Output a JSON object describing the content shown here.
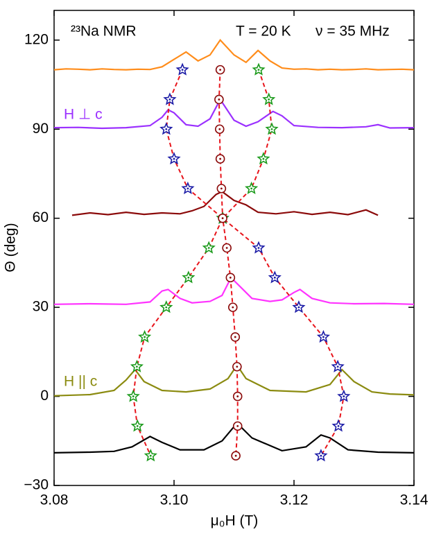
{
  "chart_data": {
    "type": "line",
    "xlabel": "μ₀H (T)",
    "ylabel": "Θ (deg)",
    "annotations": [
      "²³Na NMR",
      "T = 20 K",
      "ν = 35 MHz",
      "H ⊥ c",
      "H || c"
    ],
    "xlim": [
      3.08,
      3.14
    ],
    "ylim": [
      -30,
      130
    ],
    "xticks": [
      3.08,
      {
        "value": 3.1,
        "label": "3.10"
      },
      3.12,
      3.14
    ],
    "yticks": [
      {
        "value": -30,
        "label": "−30"
      },
      0,
      30,
      60,
      90,
      120
    ],
    "series": [
      {
        "color": "#ff8c1a",
        "line": "solid",
        "marker": "none",
        "x": [
          3.08,
          3.082,
          3.084,
          3.086,
          3.088,
          3.09,
          3.092,
          3.094,
          3.096,
          3.098,
          3.1,
          3.102,
          3.104,
          3.106,
          3.1077,
          3.11,
          3.112,
          3.114,
          3.116,
          3.118,
          3.12,
          3.122,
          3.124,
          3.126,
          3.128,
          3.13,
          3.132,
          3.134,
          3.136,
          3.138,
          3.14
        ],
        "values": [
          110,
          110.3,
          110.2,
          110,
          110.3,
          110.1,
          110,
          110.2,
          110.1,
          111,
          113.5,
          116,
          113,
          115,
          120,
          115,
          112.5,
          116.5,
          113,
          110.6,
          110.2,
          110.3,
          110,
          110.2,
          110,
          110.1,
          110.3,
          110,
          110.1,
          110.2,
          110
        ]
      },
      {
        "color": "#9b30ff",
        "line": "solid",
        "marker": "none",
        "x": [
          3.08,
          3.084,
          3.088,
          3.092,
          3.096,
          3.098,
          3.099,
          3.1,
          3.102,
          3.104,
          3.106,
          3.1077,
          3.11,
          3.112,
          3.114,
          3.1165,
          3.118,
          3.12,
          3.124,
          3.128,
          3.132,
          3.134,
          3.136,
          3.14
        ],
        "values": [
          90.5,
          90.6,
          90.3,
          90.5,
          91.2,
          94,
          96.5,
          95.5,
          91.5,
          91,
          93.5,
          100,
          93,
          91,
          92.5,
          96,
          94.5,
          91.2,
          90.6,
          90.5,
          90.8,
          91.5,
          90.4,
          90.5
        ]
      },
      {
        "color": "#8b0a0a",
        "line": "solid",
        "marker": "none",
        "x": [
          3.083,
          3.086,
          3.089,
          3.092,
          3.095,
          3.098,
          3.101,
          3.103,
          3.105,
          3.107,
          3.108,
          3.11,
          3.112,
          3.114,
          3.117,
          3.12,
          3.123,
          3.126,
          3.129,
          3.132,
          3.134
        ],
        "values": [
          61,
          61.8,
          61.2,
          62,
          61.3,
          61.8,
          61.5,
          62.5,
          64,
          68,
          69,
          66,
          64.5,
          62,
          61.5,
          62.2,
          61.3,
          62,
          61.2,
          62.8,
          61
        ]
      },
      {
        "color": "#ff33ff",
        "line": "solid",
        "marker": "none",
        "x": [
          3.08,
          3.086,
          3.092,
          3.096,
          3.098,
          3.099,
          3.101,
          3.103,
          3.106,
          3.108,
          3.1095,
          3.111,
          3.113,
          3.116,
          3.118,
          3.12,
          3.121,
          3.123,
          3.126,
          3.13,
          3.135,
          3.14
        ],
        "values": [
          31,
          31.2,
          31,
          31.8,
          35.5,
          36,
          33,
          31.5,
          32,
          34,
          40,
          37,
          33,
          32,
          32.5,
          35,
          36,
          33,
          31.5,
          31.2,
          31.3,
          31
        ]
      },
      {
        "color": "#8b8b10",
        "line": "solid",
        "marker": "none",
        "x": [
          3.08,
          3.086,
          3.09,
          3.092,
          3.0935,
          3.095,
          3.098,
          3.102,
          3.106,
          3.109,
          3.1105,
          3.112,
          3.116,
          3.122,
          3.126,
          3.128,
          3.13,
          3.133,
          3.136,
          3.14
        ],
        "values": [
          0.2,
          0.6,
          2,
          5.5,
          9,
          5,
          2,
          1.5,
          2.5,
          6,
          10.5,
          6,
          2,
          1.5,
          4,
          9,
          5,
          1.5,
          0.8,
          0.5
        ]
      },
      {
        "color": "#000000",
        "line": "solid",
        "marker": "none",
        "x": [
          3.08,
          3.086,
          3.09,
          3.093,
          3.096,
          3.098,
          3.101,
          3.105,
          3.108,
          3.1105,
          3.113,
          3.118,
          3.122,
          3.1245,
          3.126,
          3.129,
          3.134,
          3.14
        ],
        "values": [
          -19,
          -18.8,
          -18.5,
          -17,
          -13.5,
          -15.5,
          -18,
          -18,
          -15,
          -9,
          -14,
          -18.3,
          -17,
          -13,
          -14,
          -18,
          -18.8,
          -19
        ]
      },
      {
        "color": "#1a1aa6",
        "line": "dashed",
        "line_color": "#e8141b",
        "marker": "star",
        "x": [
          3.1014,
          3.0993,
          3.0987,
          3.1,
          3.1023,
          3.1081,
          3.1141,
          3.1168,
          3.1208,
          3.1249,
          3.1273,
          3.1283,
          3.1274,
          3.1245
        ],
        "values": [
          110,
          100,
          90,
          80,
          70,
          60,
          50,
          40,
          30,
          20,
          10,
          0,
          -10,
          -20
        ]
      },
      {
        "color": "#1a9a1a",
        "line": "dashed",
        "line_color": "#e8141b",
        "marker": "star",
        "x": [
          3.1141,
          3.1158,
          3.1163,
          3.1149,
          3.1129,
          3.1081,
          3.1058,
          3.1024,
          3.0987,
          3.0951,
          3.0938,
          3.0932,
          3.0939,
          3.0961
        ],
        "values": [
          110,
          100,
          90,
          80,
          70,
          60,
          50,
          40,
          30,
          20,
          10,
          0,
          -10,
          -20
        ]
      },
      {
        "color": "#8b0a0a",
        "line": "dashed",
        "line_color": "#e8141b",
        "marker": "circle",
        "x": [
          3.1077,
          3.1075,
          3.1076,
          3.1077,
          3.1079,
          3.1081,
          3.1088,
          3.1094,
          3.1098,
          3.1102,
          3.1105,
          3.1106,
          3.1106,
          3.1103
        ],
        "values": [
          110,
          100,
          90,
          80,
          70,
          60,
          50,
          40,
          30,
          20,
          10,
          0,
          -10,
          -20
        ]
      }
    ]
  }
}
